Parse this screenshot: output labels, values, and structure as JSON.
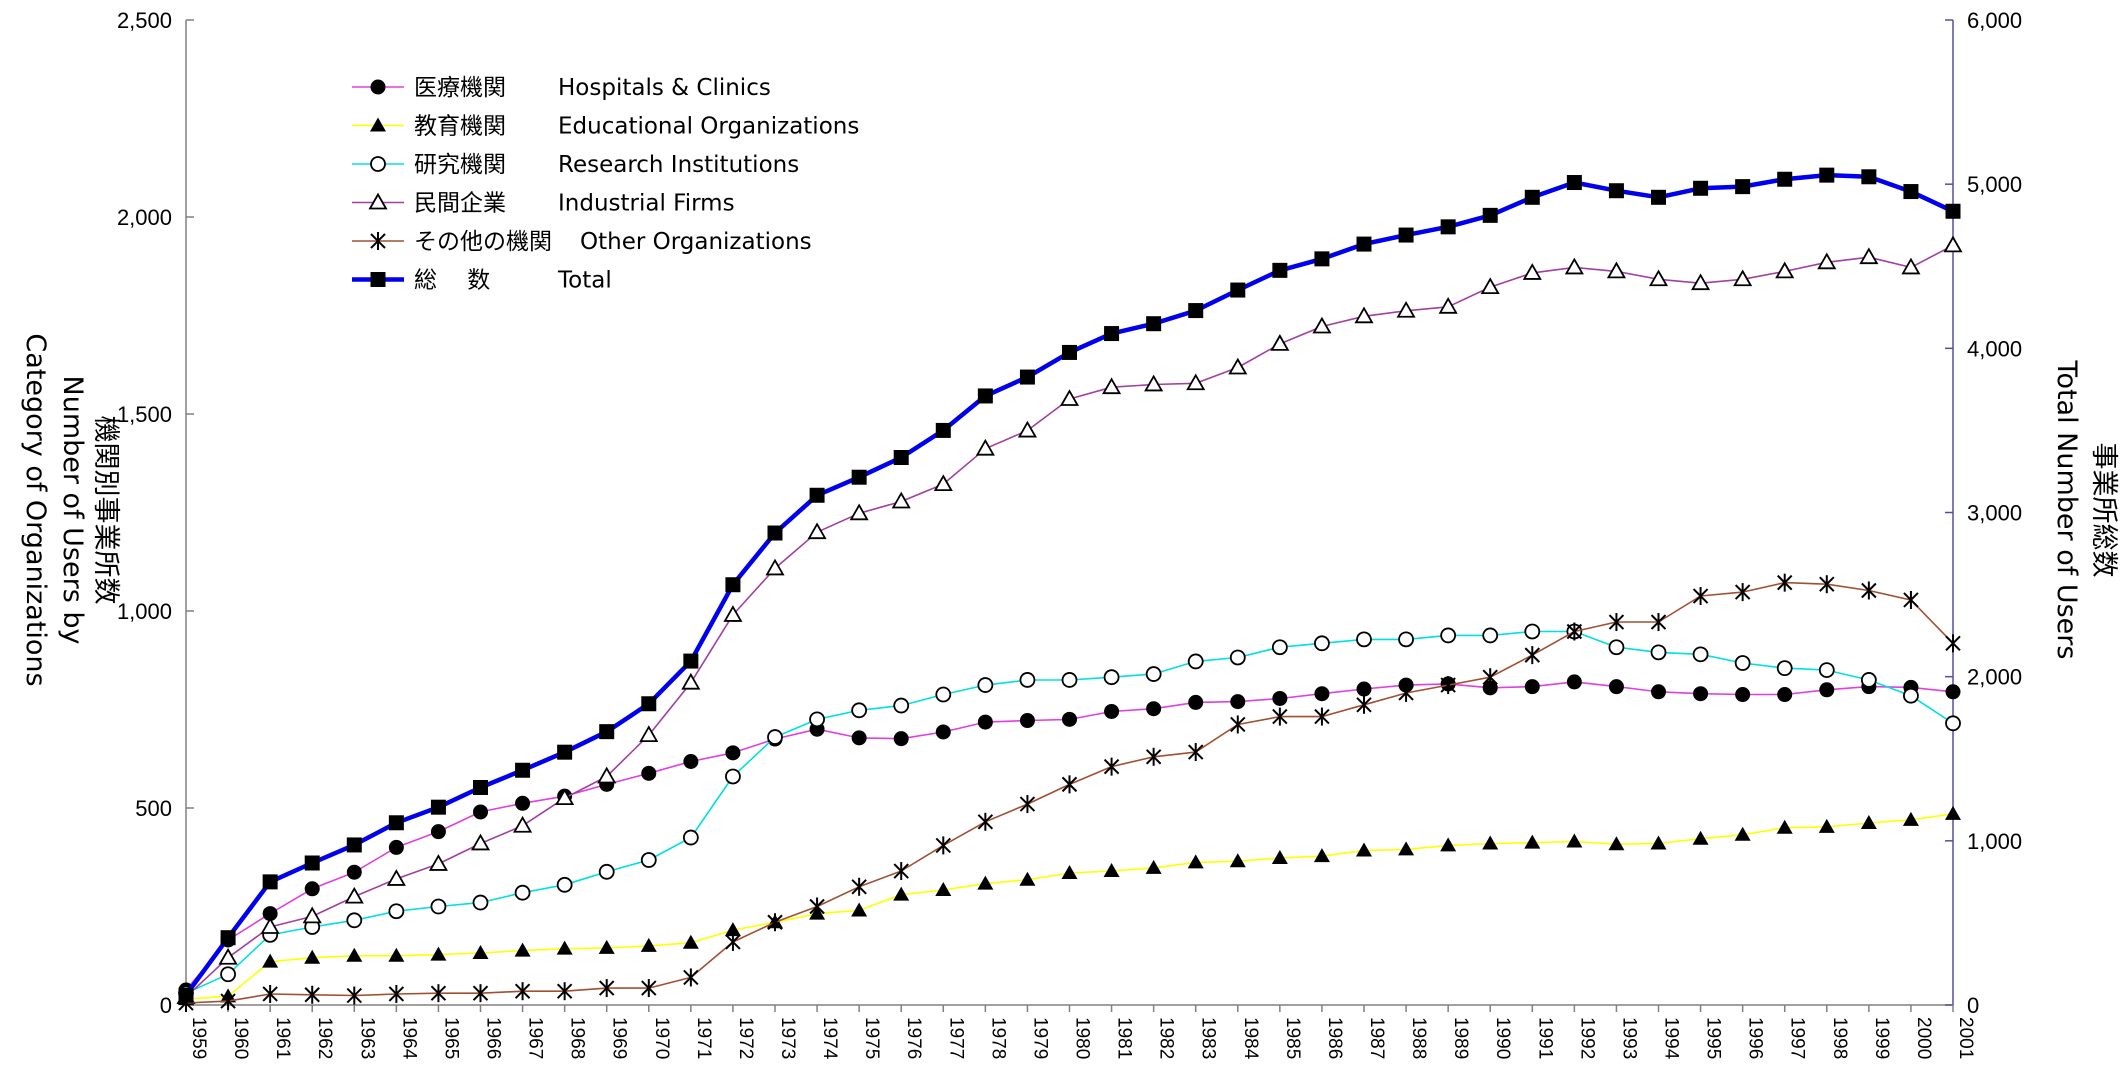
{
  "chart_data": {
    "type": "line",
    "x": [
      1959,
      1960,
      1961,
      1962,
      1963,
      1964,
      1965,
      1966,
      1967,
      1968,
      1969,
      1970,
      1971,
      1972,
      1973,
      1974,
      1975,
      1976,
      1977,
      1978,
      1979,
      1980,
      1981,
      1982,
      1983,
      1984,
      1985,
      1986,
      1987,
      1988,
      1989,
      1990,
      1991,
      1992,
      1993,
      1994,
      1995,
      1996,
      1997,
      1998,
      1999,
      2000,
      2001
    ],
    "left_axis": {
      "label_lines": [
        "機関別事業所数",
        "Number of Users by",
        "Category of Organizations"
      ],
      "ylim": [
        0,
        2500
      ],
      "ticks": [
        0,
        500,
        1000,
        1500,
        2000,
        2500
      ],
      "tick_labels": [
        "0",
        "500",
        "1,000",
        "1,500",
        "2,000",
        "2,500"
      ]
    },
    "right_axis": {
      "label_lines": [
        "事業所総数",
        "Total Number of Users"
      ],
      "ylim": [
        0,
        6000
      ],
      "ticks": [
        0,
        1000,
        2000,
        3000,
        4000,
        5000,
        6000
      ],
      "tick_labels": [
        "0",
        "1,000",
        "2,000",
        "3,000",
        "4,000",
        "5,000",
        "6,000"
      ]
    },
    "legend_position": "top-left",
    "grid": false,
    "series": [
      {
        "name": "医療機関　 Hospitals & Clinics",
        "legend_jp": "医療機関",
        "legend_en": "Hospitals & Clinics",
        "axis": "left",
        "color": "#e040e0",
        "marker": "circle-filled",
        "values": [
          38,
          165,
          232,
          295,
          337,
          400,
          440,
          490,
          512,
          530,
          560,
          588,
          618,
          640,
          675,
          700,
          678,
          676,
          693,
          718,
          722,
          725,
          745,
          752,
          768,
          770,
          778,
          790,
          802,
          812,
          815,
          805,
          808,
          820,
          808,
          795,
          790,
          788,
          788,
          800,
          808,
          806,
          795
        ]
      },
      {
        "name": "教育機関　 Educational Organizations",
        "legend_jp": "教育機関",
        "legend_en": "Educational Organizations",
        "axis": "left",
        "color": "#ffff00",
        "marker": "triangle-filled",
        "values": [
          15,
          22,
          110,
          120,
          125,
          125,
          128,
          132,
          138,
          143,
          145,
          150,
          158,
          190,
          210,
          232,
          240,
          280,
          292,
          308,
          318,
          335,
          340,
          348,
          362,
          365,
          373,
          378,
          392,
          395,
          405,
          410,
          412,
          415,
          408,
          410,
          422,
          432,
          450,
          452,
          462,
          470,
          485
        ]
      },
      {
        "name": "研究機関　 Research Institutions",
        "legend_jp": "研究機関",
        "legend_en": "Research Institutions",
        "axis": "left",
        "color": "#00e0e0",
        "marker": "circle-open",
        "values": [
          30,
          78,
          178,
          198,
          215,
          238,
          250,
          260,
          285,
          305,
          338,
          368,
          425,
          580,
          680,
          725,
          748,
          760,
          788,
          812,
          825,
          825,
          832,
          840,
          872,
          882,
          908,
          918,
          928,
          928,
          938,
          938,
          948,
          948,
          908,
          895,
          890,
          868,
          855,
          850,
          825,
          785,
          715
        ]
      },
      {
        "name": "民間企業　 Industrial Firms",
        "legend_jp": "民間企業",
        "legend_en": "Industrial Firms",
        "axis": "left",
        "color": "#a040a0",
        "marker": "triangle-open",
        "values": [
          20,
          120,
          198,
          225,
          275,
          320,
          358,
          410,
          455,
          525,
          580,
          685,
          818,
          990,
          1108,
          1200,
          1248,
          1278,
          1322,
          1412,
          1458,
          1538,
          1568,
          1575,
          1578,
          1618,
          1678,
          1722,
          1748,
          1762,
          1772,
          1822,
          1858,
          1872,
          1862,
          1842,
          1832,
          1842,
          1862,
          1885,
          1898,
          1872,
          1928
        ]
      },
      {
        "name": "その他の機関 Other Organizations",
        "legend_jp": "その他の機関",
        "legend_en": "Other Organizations",
        "axis": "left",
        "color": "#a05030",
        "marker": "asterisk",
        "values": [
          5,
          10,
          28,
          26,
          24,
          28,
          30,
          30,
          35,
          35,
          43,
          43,
          70,
          160,
          210,
          250,
          300,
          340,
          405,
          465,
          510,
          560,
          605,
          630,
          642,
          712,
          732,
          732,
          762,
          792,
          812,
          832,
          888,
          948,
          972,
          972,
          1038,
          1048,
          1072,
          1068,
          1052,
          1028,
          918
        ]
      },
      {
        "name": "総　 数　　 Total",
        "legend_jp": "総　 数",
        "legend_en": "Total",
        "axis": "right",
        "color": "#0000ee",
        "marker": "square-filled",
        "values": [
          60,
          410,
          750,
          865,
          975,
          1110,
          1205,
          1325,
          1430,
          1540,
          1665,
          1835,
          2095,
          2560,
          2875,
          3105,
          3215,
          3335,
          3500,
          3710,
          3825,
          3975,
          4090,
          4150,
          4230,
          4355,
          4475,
          4545,
          4635,
          4690,
          4740,
          4810,
          4920,
          5010,
          4960,
          4920,
          4975,
          4985,
          5030,
          5055,
          5045,
          4955,
          4835
        ]
      }
    ]
  },
  "colors": {
    "axis": "#808080",
    "right_axis": "#5050a0",
    "marker": "#000000"
  }
}
